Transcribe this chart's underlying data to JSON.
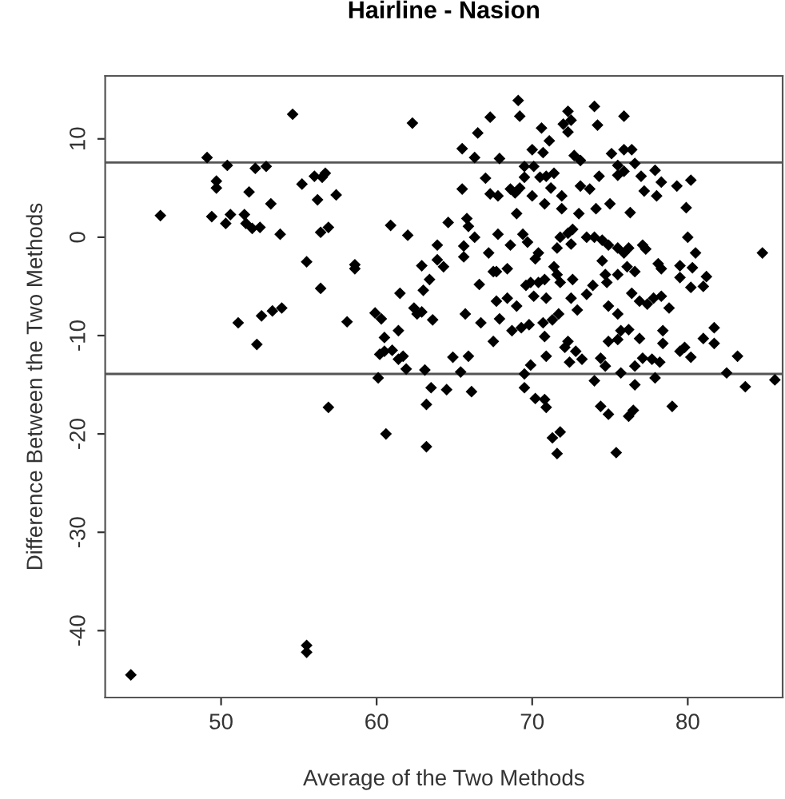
{
  "chart_data": {
    "type": "scatter",
    "title": "Hairline - Nasion",
    "xlabel": "Average of the Two Methods",
    "ylabel": "Difference Between the Two Methods",
    "xlim": [
      42.55,
      86.1
    ],
    "ylim": [
      -46.8,
      16.4
    ],
    "xticks": [
      50,
      60,
      70,
      80
    ],
    "yticks": [
      -40,
      -30,
      -20,
      -10,
      0,
      10
    ],
    "marker": "diamond",
    "grid": false,
    "legend": false,
    "ref_lines": [
      {
        "axis": "y",
        "value": 7.6,
        "color": "#555555"
      },
      {
        "axis": "y",
        "value": -13.9,
        "color": "#555555"
      }
    ],
    "series": [
      {
        "color": "#000000",
        "x": [
          44.2,
          55.5,
          55.5,
          46.1,
          49.1,
          49.7,
          49.7,
          49.4,
          50.3,
          50.4,
          50.6,
          51.5,
          51.6,
          51.8,
          52.0,
          52.2,
          52.5,
          52.9,
          53.2,
          53.8,
          51.1,
          52.3,
          52.6,
          53.3,
          53.9,
          54.6,
          55.2,
          55.5,
          56.0,
          56.2,
          56.4,
          56.4,
          56.5,
          56.7,
          56.9,
          56.9,
          57.4,
          58.1,
          58.6,
          58.6,
          59.9,
          60.3,
          60.1,
          60.5,
          60.2,
          60.5,
          61.0,
          60.6,
          60.9,
          61.4,
          61.5,
          61.4,
          69.1,
          69.2,
          62.3,
          67.3,
          66.5,
          70.6,
          71.1,
          72.3,
          72.5,
          72.0,
          72.3,
          74.0,
          74.2,
          75.9,
          65.5,
          66.3,
          67.9,
          70.0,
          70.7,
          72.7,
          73.1,
          75.1,
          75.9,
          76.4,
          75.5,
          76.6,
          69.5,
          70.1,
          67.0,
          65.5,
          67.3,
          67.8,
          68.6,
          68.9,
          69.2,
          69.5,
          70.5,
          70.9,
          71.4,
          71.2,
          71.9,
          73.1,
          73.7,
          74.3,
          75.5,
          75.9,
          77.0,
          77.9,
          78.3,
          79.3,
          80.2,
          69.0,
          70.0,
          70.8,
          71.9,
          73.0,
          74.1,
          75.0,
          76.3,
          77.2,
          78.0,
          79.9,
          64.6,
          62.0,
          63.9,
          63.9,
          64.3,
          65.8,
          65.9,
          66.3,
          65.6,
          65.6,
          67.2,
          67.8,
          68.6,
          69.4,
          69.7,
          70.2,
          70.4,
          67.7,
          68.4,
          69.6,
          69.9,
          70.8,
          71.4,
          71.6,
          71.8,
          72.3,
          72.5,
          72.6,
          71.6,
          71.8,
          72.6,
          73.5,
          74.0,
          74.5,
          74.9,
          75.5,
          75.9,
          76.2,
          74.5,
          74.7,
          74.8,
          75.5,
          76.1,
          76.6,
          77.1,
          77.3,
          78.1,
          78.3,
          79.5,
          80.3,
          84.8,
          80.0,
          80.5,
          79.5,
          80.2,
          81.0,
          81.2,
          62.9,
          63.4,
          63.0,
          62.4,
          62.6,
          62.9,
          63.6,
          66.6,
          67.5,
          68.4,
          67.7,
          67.9,
          69.0,
          70.1,
          70.4,
          70.9,
          71.3,
          71.7,
          72.5,
          72.9,
          73.5,
          73.9,
          74.9,
          75.5,
          76.4,
          76.9,
          77.4,
          77.8,
          78.3,
          78.8,
          65.7,
          66.7,
          61.7,
          61.9,
          63.1,
          64.9,
          65.9,
          65.4,
          67.5,
          68.7,
          69.3,
          69.8,
          70.7,
          70.8,
          72.3,
          72.1,
          72.8,
          73.2,
          72.4,
          74.4,
          74.9,
          75.5,
          75.7,
          76.2,
          76.9,
          77.1,
          77.7,
          78.2,
          78.4,
          78.4,
          79.5,
          79.8,
          80.2,
          81.0,
          81.7,
          81.7,
          83.2,
          82.5,
          83.7,
          85.6,
          69.9,
          69.5,
          70.9,
          74.0,
          74.7,
          75.7,
          76.6,
          77.9,
          63.5,
          64.5,
          66.1,
          69.5,
          70.2,
          70.8,
          70.9,
          63.2,
          76.6,
          74.4,
          74.9,
          76.2,
          76.5,
          79.0,
          63.2,
          71.3,
          71.8,
          71.6,
          75.4
        ],
        "values": [
          -44.5,
          -41.5,
          -42.2,
          2.2,
          8.1,
          5.7,
          5.0,
          2.1,
          1.4,
          7.3,
          2.3,
          2.3,
          1.4,
          4.6,
          0.9,
          7.0,
          1.0,
          7.2,
          3.4,
          0.3,
          -8.7,
          -10.9,
          -8.0,
          -7.5,
          -7.2,
          12.5,
          5.4,
          -2.5,
          6.2,
          3.8,
          -5.2,
          0.5,
          6.1,
          6.5,
          1.0,
          -17.3,
          4.3,
          -8.6,
          -2.8,
          -3.2,
          -7.7,
          -8.3,
          -14.3,
          -10.2,
          -11.9,
          -11.6,
          -11.5,
          -20.0,
          1.2,
          -12.4,
          -5.7,
          -9.5,
          13.9,
          12.3,
          11.6,
          12.2,
          10.6,
          11.1,
          9.8,
          12.8,
          11.9,
          11.5,
          10.7,
          13.3,
          11.4,
          12.3,
          9.0,
          8.1,
          8.0,
          8.9,
          8.6,
          8.3,
          7.8,
          8.5,
          8.9,
          8.9,
          7.3,
          7.5,
          7.2,
          7.2,
          6.0,
          4.9,
          4.4,
          4.2,
          4.9,
          4.5,
          5.0,
          6.1,
          6.1,
          6.2,
          6.5,
          5.0,
          4.2,
          5.2,
          4.9,
          6.2,
          6.3,
          6.7,
          6.2,
          6.8,
          5.6,
          5.2,
          5.8,
          2.4,
          4.2,
          3.4,
          2.9,
          2.4,
          2.9,
          3.4,
          2.5,
          4.7,
          4.2,
          3.0,
          1.5,
          0.2,
          -0.8,
          -2.3,
          -3.0,
          1.9,
          1.1,
          0.0,
          -0.9,
          -2.0,
          -1.6,
          0.3,
          -0.8,
          0.3,
          -0.5,
          -2.2,
          -1.6,
          -3.5,
          -3.2,
          -4.9,
          -4.6,
          -4.3,
          -3.0,
          -1.1,
          0.0,
          0.4,
          -0.7,
          0.8,
          -3.8,
          -4.6,
          -4.3,
          0.0,
          0.0,
          -0.3,
          -0.8,
          -1.1,
          -1.6,
          -1.1,
          -2.4,
          -3.8,
          -4.6,
          -3.8,
          -3.0,
          -3.5,
          -0.8,
          -1.2,
          -2.7,
          -3.2,
          -2.9,
          -3.1,
          -1.6,
          0.0,
          -1.6,
          -4.1,
          -5.1,
          -5.0,
          -4.0,
          -2.9,
          -4.3,
          -5.4,
          -7.2,
          -7.8,
          -7.6,
          -8.4,
          -4.8,
          -3.5,
          -6.2,
          -6.5,
          -8.3,
          -7.0,
          -6.0,
          -4.6,
          -6.2,
          -8.4,
          -7.8,
          -6.2,
          -7.4,
          -5.8,
          -4.9,
          -7.0,
          -7.8,
          -5.7,
          -6.5,
          -6.8,
          -6.2,
          -6.0,
          -7.2,
          -7.8,
          -8.7,
          -12.1,
          -13.4,
          -13.5,
          -12.2,
          -12.1,
          -13.7,
          -10.6,
          -9.5,
          -9.2,
          -8.9,
          -8.7,
          -10.1,
          -10.6,
          -11.2,
          -11.6,
          -12.4,
          -12.7,
          -12.3,
          -10.6,
          -10.4,
          -9.5,
          -9.4,
          -10.3,
          -12.3,
          -12.4,
          -12.7,
          -10.8,
          -9.5,
          -11.6,
          -11.2,
          -12.2,
          -10.3,
          -10.8,
          -9.2,
          -12.1,
          -13.8,
          -15.2,
          -14.5,
          -13.0,
          -13.9,
          -12.1,
          -14.6,
          -13.1,
          -13.8,
          -13.1,
          -14.3,
          -15.3,
          -15.5,
          -15.7,
          -15.3,
          -16.4,
          -16.5,
          -17.3,
          -17.0,
          -15.0,
          -17.2,
          -18.0,
          -18.2,
          -17.6,
          -17.2,
          -21.3,
          -20.4,
          -19.8,
          -22.0,
          -21.9
        ]
      }
    ]
  }
}
